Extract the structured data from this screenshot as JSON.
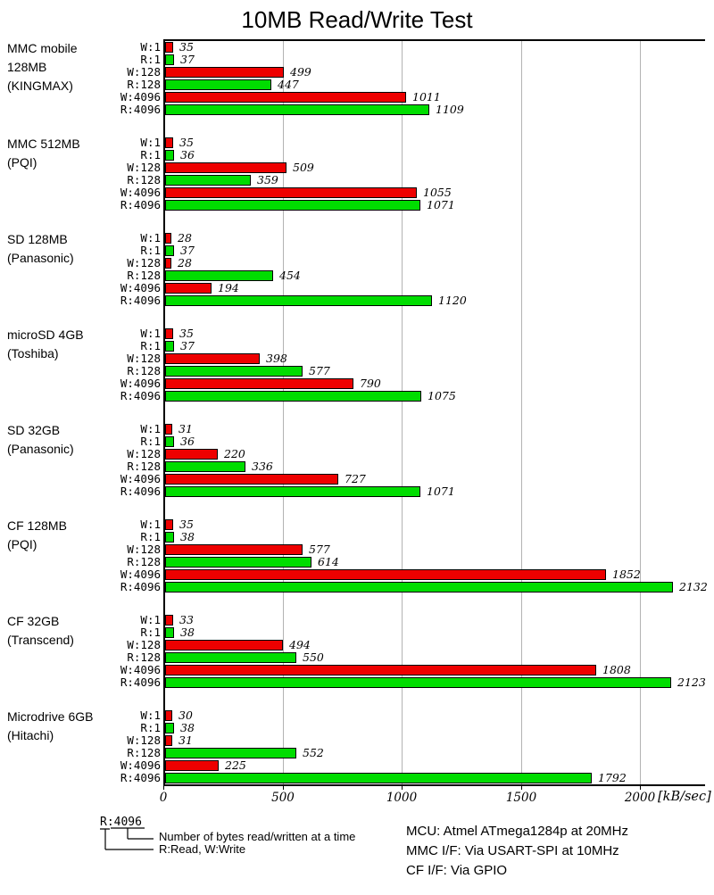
{
  "chart_data": {
    "type": "bar",
    "orientation": "horizontal",
    "title": "10MB Read/Write Test",
    "xlabel": "",
    "x_unit": "[kB/sec]",
    "xlim": [
      0,
      2236
    ],
    "x_ticks": [
      0,
      500,
      1000,
      1500,
      2000
    ],
    "grid": "vertical-gridlines-on",
    "row_labels": [
      "W:1",
      "R:1",
      "W:128",
      "R:128",
      "W:4096",
      "R:4096"
    ],
    "write_color": "#ee0000",
    "read_color": "#00dd00",
    "groups": [
      {
        "name": "MMC mobile\n128MB\n(KINGMAX)",
        "values": [
          35,
          37,
          499,
          447,
          1011,
          1109
        ]
      },
      {
        "name": "MMC 512MB\n(PQI)",
        "values": [
          35,
          36,
          509,
          359,
          1055,
          1071
        ]
      },
      {
        "name": "SD 128MB\n(Panasonic)",
        "values": [
          28,
          37,
          28,
          454,
          194,
          1120
        ]
      },
      {
        "name": "microSD 4GB\n(Toshiba)",
        "values": [
          35,
          37,
          398,
          577,
          790,
          1075
        ]
      },
      {
        "name": "SD 32GB\n(Panasonic)",
        "values": [
          31,
          36,
          220,
          336,
          727,
          1071
        ]
      },
      {
        "name": "CF 128MB\n(PQI)",
        "values": [
          35,
          38,
          577,
          614,
          1852,
          2132
        ]
      },
      {
        "name": "CF 32GB\n(Transcend)",
        "values": [
          33,
          38,
          494,
          550,
          1808,
          2123
        ]
      },
      {
        "name": "Microdrive 6GB\n(Hitachi)",
        "values": [
          30,
          38,
          31,
          552,
          225,
          1792
        ]
      }
    ]
  },
  "legend": {
    "sample": "R:4096",
    "bytes_note": "Number of bytes read/written at a time",
    "rw_note": "R:Read, W:Write"
  },
  "notes": [
    "MCU: Atmel ATmega1284p at 20MHz",
    "MMC I/F: Via USART-SPI at 10MHz",
    "CF I/F: Via GPIO"
  ]
}
